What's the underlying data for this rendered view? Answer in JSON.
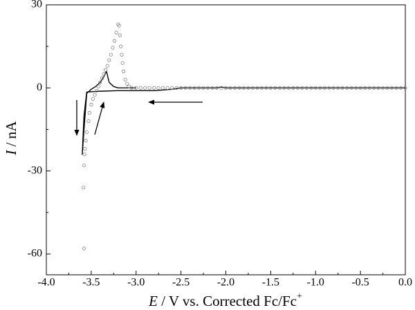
{
  "chart_data": {
    "type": "line",
    "xlabel": {
      "symbol": "E",
      "text": " / V vs. Corrected Fc/Fc",
      "superscript": "+"
    },
    "ylabel": {
      "symbol": "I",
      "text": " / nA"
    },
    "xlim": [
      -4,
      0
    ],
    "ylim": [
      -67.5,
      30
    ],
    "xticks": [
      {
        "value": -4,
        "label": "-4.0"
      },
      {
        "value": -3.5,
        "label": "-3.5"
      },
      {
        "value": -3,
        "label": "-3.0"
      },
      {
        "value": -2.5,
        "label": "-2.5"
      },
      {
        "value": -2,
        "label": "-2.0"
      },
      {
        "value": -1.5,
        "label": "-1.5"
      },
      {
        "value": -1,
        "label": "-1.0"
      },
      {
        "value": -0.5,
        "label": "-0.5"
      },
      {
        "value": 0,
        "label": "0.0"
      }
    ],
    "xminorticks": [
      -3.75,
      -3.25,
      -2.75,
      -2.25,
      -1.75,
      -1.25,
      -0.75,
      -0.25
    ],
    "yticks": [
      30,
      0,
      -30,
      -60
    ],
    "yminorticks": [
      15,
      -15,
      -45
    ],
    "series": [
      {
        "mode": "line",
        "color": "#000000",
        "x": [
          0,
          -0.5,
          -1,
          -1.5,
          -2,
          -2.05,
          -2.1,
          -2.5,
          -2.6,
          -2.8,
          -3,
          -3.2,
          -3.4,
          -3.55,
          -3.58,
          -3.6,
          -3.58,
          -3.55,
          -3.5,
          -3.45,
          -3.4,
          -3.36,
          -3.33,
          -3.3,
          -3.25,
          -3.2,
          -3.1,
          -3
        ],
        "values": [
          0,
          0,
          0,
          0,
          0,
          0.3,
          0,
          0,
          -0.5,
          -1,
          -1,
          -1,
          -1.2,
          -1.5,
          -10,
          -24,
          -15,
          -2,
          -0.5,
          0.5,
          2,
          4,
          6,
          2,
          0.5,
          0,
          0,
          0
        ]
      },
      {
        "mode": "markers",
        "color": "#808080",
        "x": [
          0,
          -0.05,
          -0.1,
          -0.15,
          -0.2,
          -0.25,
          -0.3,
          -0.35,
          -0.4,
          -0.45,
          -0.5,
          -0.55,
          -0.6,
          -0.65,
          -0.7,
          -0.75,
          -0.8,
          -0.85,
          -0.9,
          -0.95,
          -1,
          -1.05,
          -1.1,
          -1.15,
          -1.2,
          -1.25,
          -1.3,
          -1.35,
          -1.4,
          -1.45,
          -1.5,
          -1.55,
          -1.6,
          -1.65,
          -1.7,
          -1.75,
          -1.8,
          -1.85,
          -1.9,
          -1.95,
          -2,
          -2.05,
          -2.1,
          -2.15,
          -2.2,
          -2.25,
          -2.3,
          -2.35,
          -2.4,
          -2.45,
          -2.5,
          -2.55,
          -2.6,
          -2.65,
          -2.7,
          -2.75,
          -2.8,
          -2.85,
          -2.9,
          -2.95,
          -3,
          -3.05,
          -3.08,
          -3.1,
          -3.12,
          -3.14,
          -3.15,
          -3.16,
          -3.17,
          -3.18,
          -3.19,
          -3.2,
          -3.22,
          -3.24,
          -3.26,
          -3.28,
          -3.3,
          -3.32,
          -3.34,
          -3.36,
          -3.38,
          -3.4,
          -3.42,
          -3.44,
          -3.46,
          -3.48,
          -3.5,
          -3.52,
          -3.53,
          -3.55,
          -3.56,
          -3.57,
          -3.575,
          -3.58,
          -3.585,
          -3.58
        ],
        "values": [
          0,
          0,
          0,
          0,
          0,
          0,
          0,
          0,
          0,
          0,
          0,
          0,
          0,
          0,
          0,
          0,
          0,
          0,
          0,
          0,
          0,
          0,
          0,
          0,
          0,
          0,
          0,
          0,
          0,
          0,
          0,
          0,
          0,
          0,
          0,
          0,
          0,
          0,
          0,
          0,
          0,
          0,
          0,
          0,
          0,
          0,
          0,
          0,
          0,
          0,
          0,
          0,
          0,
          0,
          0,
          0,
          0,
          0,
          0,
          0,
          0,
          0,
          0.5,
          1.5,
          3,
          6,
          9,
          12,
          15,
          19,
          22.5,
          23,
          20,
          17,
          14.5,
          12,
          10,
          8,
          6.5,
          5,
          3.5,
          2,
          0.5,
          -1,
          -2.5,
          -4,
          -6,
          -9,
          -12,
          -16,
          -19,
          -22,
          -24,
          -28,
          -36,
          -58
        ]
      }
    ]
  }
}
